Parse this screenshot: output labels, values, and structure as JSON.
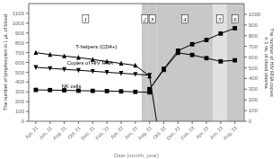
{
  "chart_data": {
    "type": "line",
    "xlabel": "Date (month, year)",
    "ylabel": "The number of lymphocytes in 1 μL of blood",
    "y2label": "The number of HIV RNA copies\nin 1 mL of blood plasma",
    "xlim": [
      -0.5,
      14.65
    ],
    "xticks": [
      {
        "value": 0,
        "label": "Apr, 21"
      },
      {
        "value": 1,
        "label": "Jun, 21"
      },
      {
        "value": 2,
        "label": "Aug, 21"
      },
      {
        "value": 3,
        "label": "Oct, 21"
      },
      {
        "value": 4,
        "label": "Dec, 21"
      },
      {
        "value": 5,
        "label": "Feb, 22"
      },
      {
        "value": 6,
        "label": "Apr, 22"
      },
      {
        "value": 7,
        "label": "Jun, 22"
      },
      {
        "value": 8,
        "label": "Aug, 22"
      },
      {
        "value": 9,
        "label": "Oct, 22"
      },
      {
        "value": 10,
        "label": "Dec, 22"
      },
      {
        "value": 11,
        "label": "Feb, 23"
      },
      {
        "value": 12,
        "label": "Apr, 23"
      },
      {
        "value": 13,
        "label": "Jun, 23"
      },
      {
        "value": 14,
        "label": "Aug, 23"
      }
    ],
    "ylim": [
      0,
      1200
    ],
    "yticks": [
      0,
      100,
      200,
      300,
      400,
      500,
      600,
      700,
      800,
      900,
      1000,
      1100
    ],
    "y2lim": [
      0,
      1100
    ],
    "y2ticks": [
      0,
      100,
      200,
      300,
      400,
      500,
      600,
      700,
      800,
      900,
      1000
    ],
    "series": [
      {
        "x": [
          0,
          1,
          2,
          3,
          4,
          5,
          6,
          7,
          8
        ],
        "values": [
          700,
          680,
          665,
          650,
          630,
          610,
          590,
          570,
          460
        ],
        "color": "#000000",
        "marker": "triangle-up"
      },
      {
        "x": [
          8,
          8.5
        ],
        "values": [
          460,
          0
        ],
        "color": "#000000",
        "marker": "none"
      },
      {
        "x": [
          0,
          1,
          2,
          3,
          4,
          5,
          6,
          7,
          8
        ],
        "values": [
          320,
          318,
          316,
          312,
          310,
          308,
          305,
          300,
          295
        ],
        "color": "#000000",
        "marker": "square"
      },
      {
        "x": [
          0,
          1,
          2,
          3,
          4,
          5,
          6,
          7,
          8
        ],
        "values": [
          550,
          540,
          530,
          520,
          510,
          500,
          490,
          480,
          470
        ],
        "color": "#000000",
        "marker": "triangle-down"
      },
      {
        "x": [
          8,
          9,
          10,
          11,
          12,
          13,
          14
        ],
        "values": [
          300,
          490,
          660,
          720,
          760,
          820,
          870
        ],
        "color": "#000000",
        "marker": "square",
        "axis": "y2"
      },
      {
        "x": [
          8,
          9,
          10,
          11,
          12,
          13,
          14
        ],
        "values": [
          300,
          480,
          640,
          620,
          590,
          560,
          570
        ],
        "color": "#000000",
        "marker": "square",
        "axis": "y2"
      }
    ],
    "spans": [
      {
        "x0": 7.45,
        "x1": 7.88,
        "color": "#c8c8c8"
      },
      {
        "x0": 7.88,
        "x1": 8.5,
        "color": "#c8c8c8"
      },
      {
        "x0": 8.5,
        "x1": 12.45,
        "color": "#c8c8c8"
      },
      {
        "x0": 12.45,
        "x1": 13.45,
        "color": "#e0e0e0"
      },
      {
        "x0": 13.45,
        "x1": 14.6,
        "color": "#c8c8c8"
      }
    ],
    "region_labels": [
      {
        "text": "1",
        "x": 3.5,
        "y": 1085
      },
      {
        "text": "2",
        "x": 7.665,
        "y": 1085
      },
      {
        "text": "3",
        "x": 8.19,
        "y": 1085
      },
      {
        "text": "4",
        "x": 10.47,
        "y": 1085
      },
      {
        "text": "5",
        "x": 12.95,
        "y": 1085
      },
      {
        "text": "6",
        "x": 14.025,
        "y": 1085
      }
    ],
    "annotations": [
      {
        "text": "T-helpers (CD4+)",
        "x": 2.8,
        "y": 740
      },
      {
        "text": "Copies of HIV RNA",
        "x": 2.2,
        "y": 580
      },
      {
        "text": "NK cells",
        "x": 1.8,
        "y": 340
      }
    ]
  }
}
